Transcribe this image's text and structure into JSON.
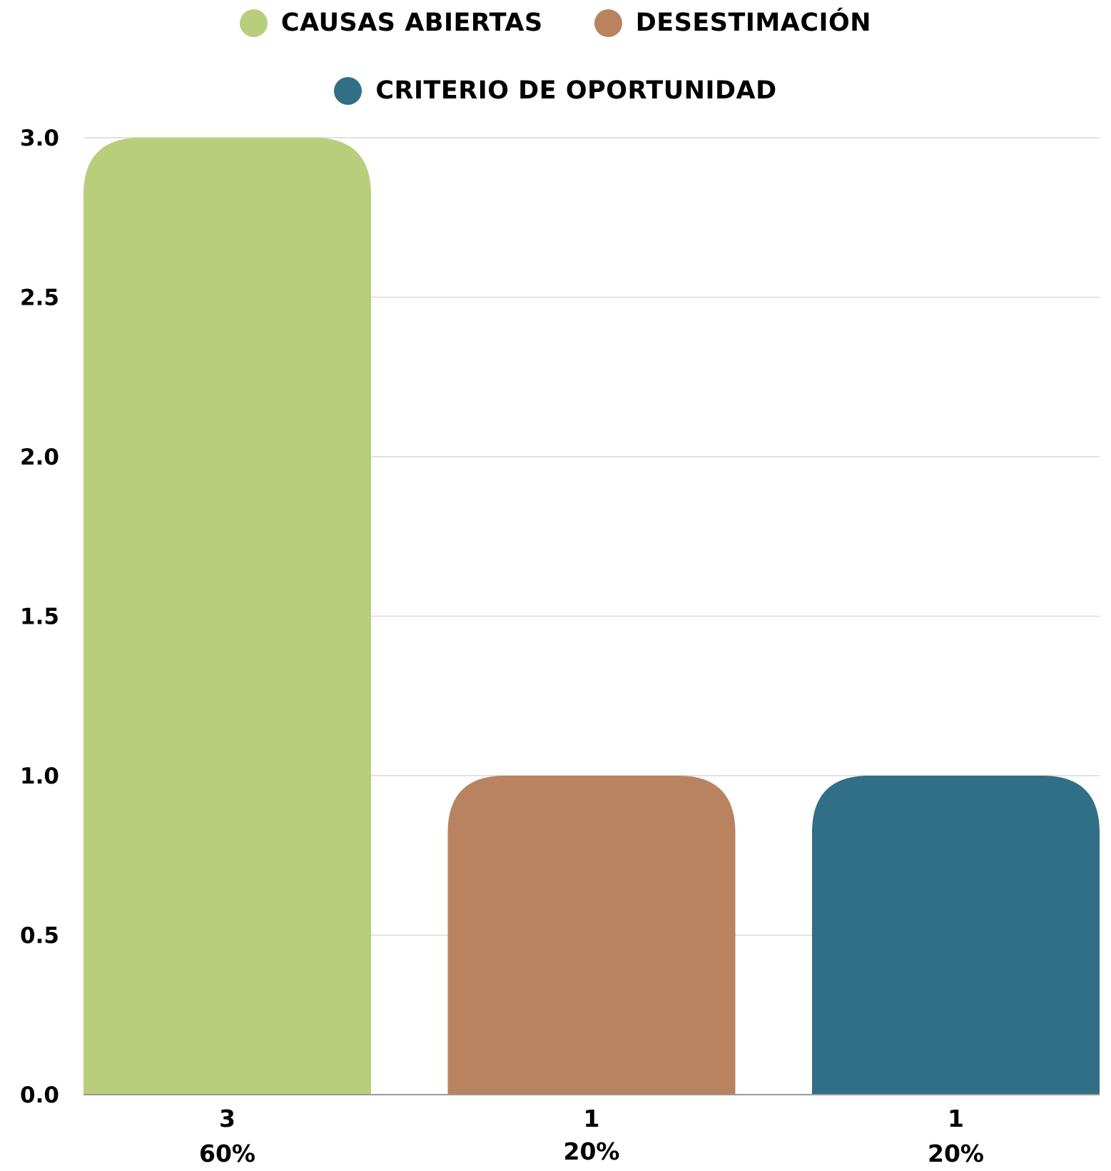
{
  "legend": {
    "items": [
      {
        "label": "CAUSAS ABIERTAS",
        "color": "#b8ce7b"
      },
      {
        "label": "DESESTIMACIÓN",
        "color": "#b98360"
      },
      {
        "label": "CRITERIO DE OPORTUNIDAD",
        "color": "#316f86"
      }
    ]
  },
  "chart_data": {
    "type": "bar",
    "title": "",
    "xlabel": "",
    "ylabel": "",
    "ylim": [
      0,
      3.0
    ],
    "yticks": [
      "0.0",
      "0.5",
      "1.0",
      "1.5",
      "2.0",
      "2.5",
      "3.0"
    ],
    "grid": true,
    "legend_position": "top-center",
    "categories": [
      "CAUSAS ABIERTAS",
      "DESESTIMACIÓN",
      "CRITERIO DE OPORTUNIDAD"
    ],
    "values": [
      3,
      1,
      1
    ],
    "value_labels": [
      "3",
      "1",
      "1"
    ],
    "percent_labels": [
      "60%",
      "20%",
      "20%"
    ],
    "colors": [
      "#b8ce7b",
      "#b98360",
      "#316f86"
    ]
  }
}
